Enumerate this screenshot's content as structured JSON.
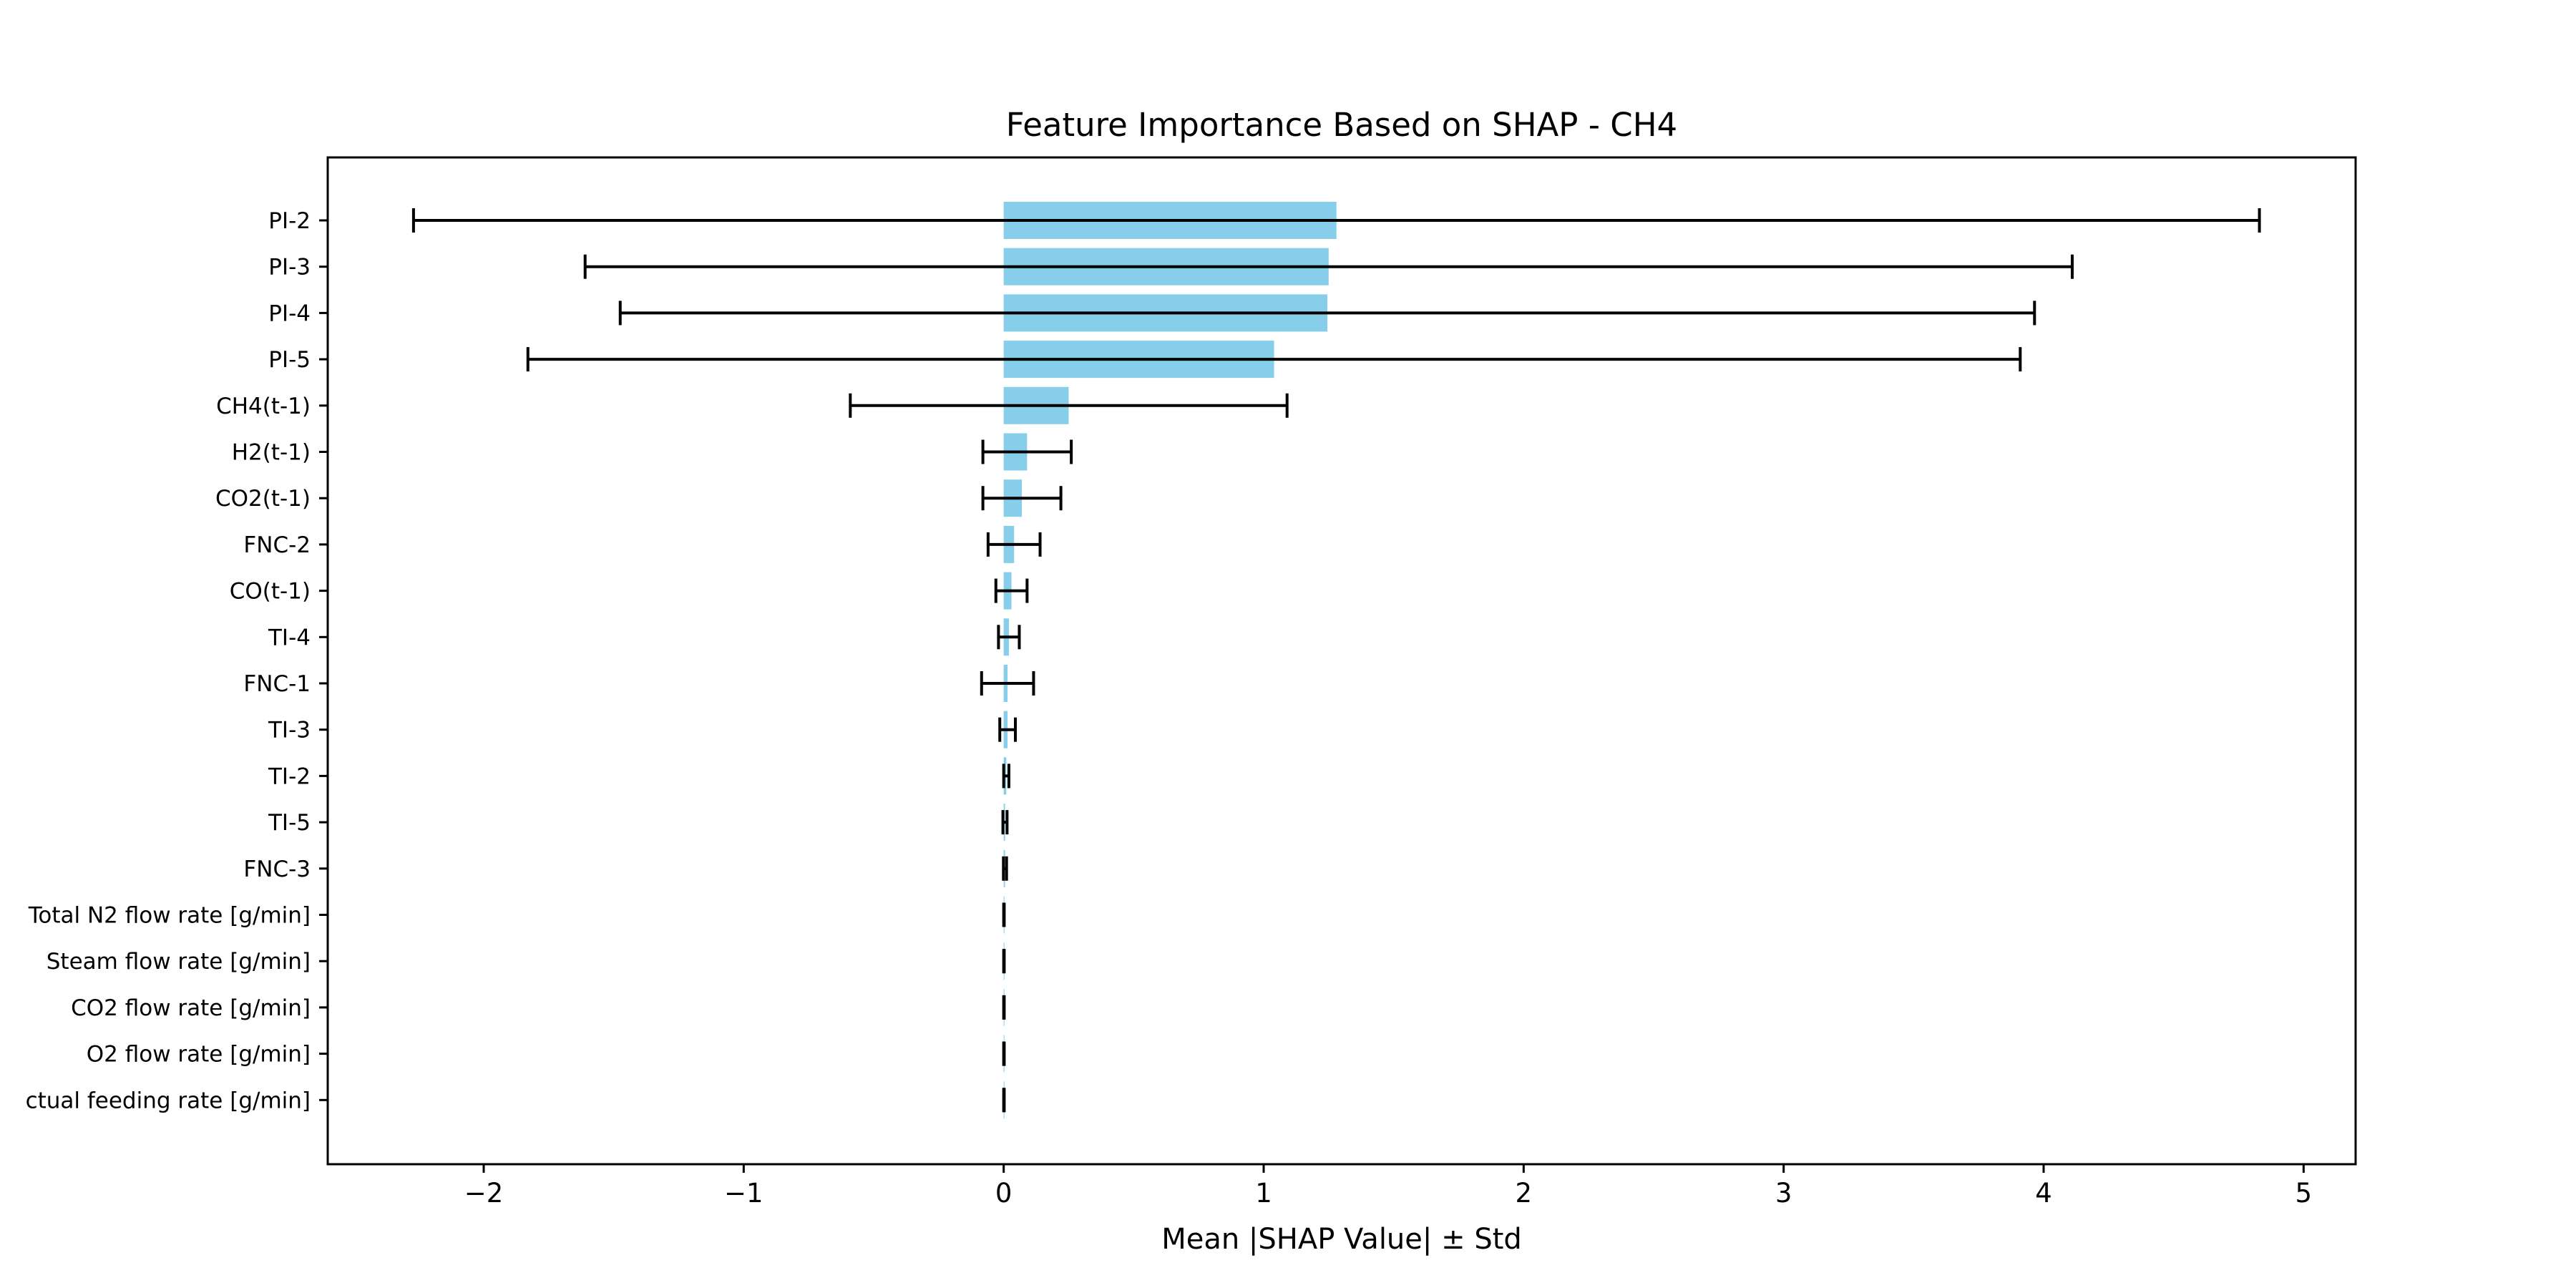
{
  "chart_data": {
    "type": "bar",
    "orientation": "horizontal",
    "title": "Feature Importance Based on SHAP - CH4",
    "xlabel": "Mean |SHAP Value| ± Std",
    "ylabel": "",
    "xlim": [
      -2.6,
      5.2
    ],
    "xticks": [
      -2,
      -1,
      0,
      1,
      2,
      3,
      4,
      5
    ],
    "xtick_labels": [
      "−2",
      "−1",
      "0",
      "1",
      "2",
      "3",
      "4",
      "5"
    ],
    "grid": false,
    "bar_color": "#87CEEB",
    "errorbar_color": "#000000",
    "categories": [
      "PI-2",
      "PI-3",
      "PI-4",
      "PI-5",
      "CH4(t-1)",
      "H2(t-1)",
      "CO2(t-1)",
      "FNC-2",
      "CO(t-1)",
      "TI-4",
      "FNC-1",
      "TI-3",
      "TI-2",
      "TI-5",
      "FNC-3",
      "Total N2 flow rate [g/min]",
      "Steam flow rate [g/min]",
      "CO2 flow rate [g/min]",
      "O2 flow rate [g/min]",
      "Actual feeding rate [g/min]"
    ],
    "category_labels": [
      "PI-2",
      "PI-3",
      "PI-4",
      "PI-5",
      "CH4(t-1)",
      "H2(t-1)",
      "CO2(t-1)",
      "FNC-2",
      "CO(t-1)",
      "TI-4",
      "FNC-1",
      "TI-3",
      "TI-2",
      "TI-5",
      "FNC-3",
      "Total N2 flow rate [g/min]",
      "Steam flow rate [g/min]",
      "CO2 flow rate [g/min]",
      "O2 flow rate [g/min]",
      "ctual feeding rate [g/min]"
    ],
    "values": [
      1.28,
      1.25,
      1.245,
      1.04,
      0.25,
      0.09,
      0.07,
      0.04,
      0.03,
      0.02,
      0.015,
      0.015,
      0.01,
      0.005,
      0.005,
      0.001,
      0.001,
      0.001,
      0.001,
      0.001
    ],
    "errors": [
      3.55,
      2.86,
      2.72,
      2.87,
      0.84,
      0.17,
      0.15,
      0.1,
      0.06,
      0.04,
      0.1,
      0.03,
      0.01,
      0.008,
      0.006,
      0.001,
      0.001,
      0.001,
      0.001,
      0.001
    ]
  }
}
